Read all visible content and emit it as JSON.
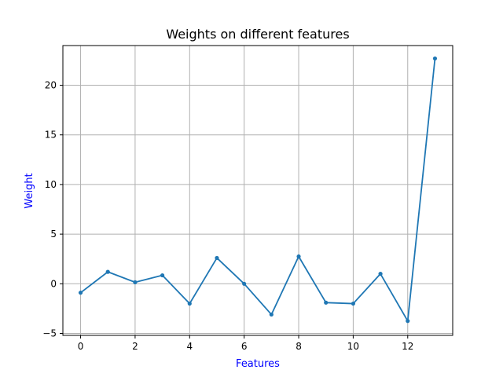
{
  "chart_data": {
    "type": "line",
    "title": "Weights on different features",
    "xlabel": "Features",
    "ylabel": "Weight",
    "label_color": "#0000ff",
    "line_color": "#1f77b4",
    "grid": true,
    "xlim": [
      -0.65,
      13.65
    ],
    "ylim": [
      -5.2,
      24.0
    ],
    "xticks": [
      0,
      2,
      4,
      6,
      8,
      10,
      12
    ],
    "yticks": [
      -5,
      0,
      5,
      10,
      15,
      20
    ],
    "x": [
      0,
      1,
      2,
      3,
      4,
      5,
      6,
      7,
      8,
      9,
      10,
      11,
      12,
      13
    ],
    "series": [
      {
        "values": [
          -0.9,
          1.2,
          0.15,
          0.85,
          -2.0,
          2.6,
          0.0,
          -3.1,
          2.75,
          -1.9,
          -2.0,
          1.0,
          -3.75,
          22.7
        ]
      }
    ]
  }
}
